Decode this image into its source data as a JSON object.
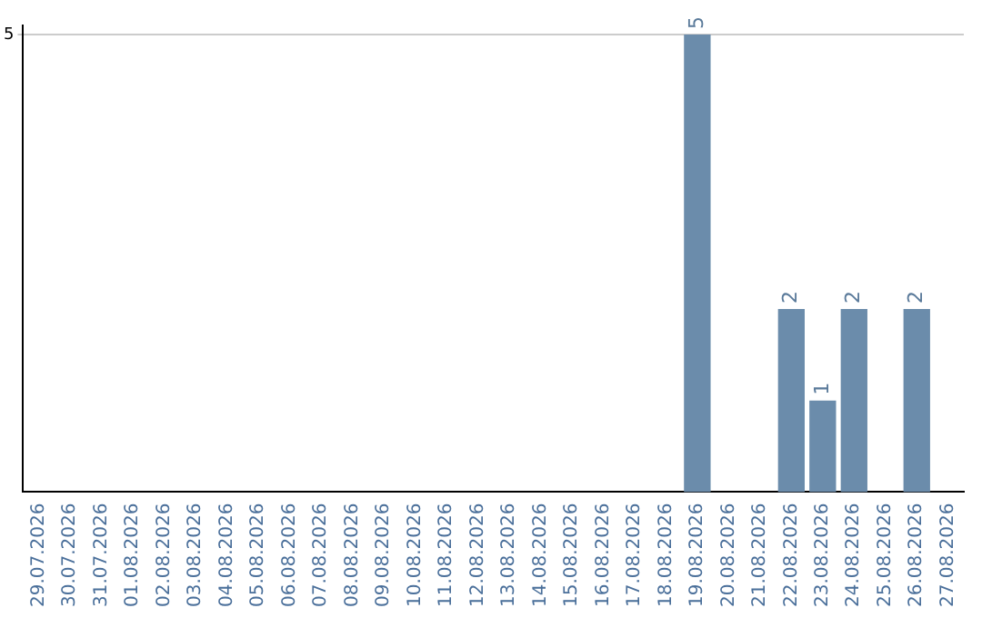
{
  "chart_data": {
    "type": "bar",
    "categories": [
      "29.07.2026",
      "30.07.2026",
      "31.07.2026",
      "01.08.2026",
      "02.08.2026",
      "03.08.2026",
      "04.08.2026",
      "05.08.2026",
      "06.08.2026",
      "07.08.2026",
      "08.08.2026",
      "09.08.2026",
      "10.08.2026",
      "11.08.2026",
      "12.08.2026",
      "13.08.2026",
      "14.08.2026",
      "15.08.2026",
      "16.08.2026",
      "17.08.2026",
      "18.08.2026",
      "19.08.2026",
      "20.08.2026",
      "21.08.2026",
      "22.08.2026",
      "23.08.2026",
      "24.08.2026",
      "25.08.2026",
      "26.08.2026",
      "27.08.2026"
    ],
    "values": [
      null,
      null,
      null,
      null,
      null,
      null,
      null,
      null,
      null,
      null,
      null,
      null,
      null,
      null,
      null,
      null,
      null,
      null,
      null,
      null,
      null,
      5,
      null,
      null,
      2,
      1,
      2,
      null,
      2,
      null
    ],
    "color": "#6b8cab",
    "ylim": [
      0,
      5.1
    ],
    "yticks": [
      5
    ],
    "grid": "y",
    "data_labels": true,
    "legend": false
  }
}
